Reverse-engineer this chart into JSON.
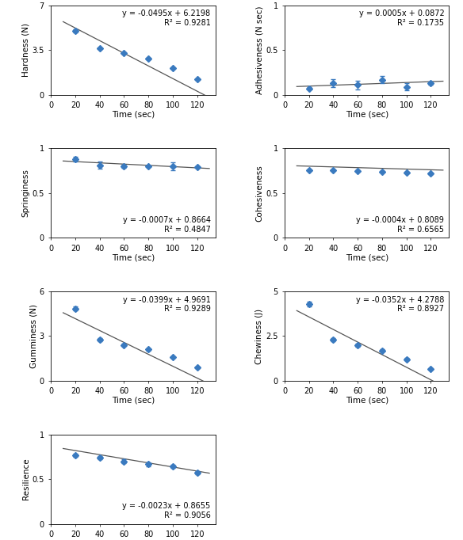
{
  "time": [
    20,
    40,
    60,
    80,
    100,
    120
  ],
  "panels": [
    {
      "ylabel": "Hardness (N)",
      "xlabel": "Time (sec)",
      "y": [
        5.0,
        3.65,
        3.25,
        2.85,
        2.1,
        1.2
      ],
      "yerr": [
        0.1,
        0.06,
        0.07,
        0.06,
        0.05,
        0.05
      ],
      "slope": -0.0495,
      "intercept": 6.2198,
      "r2": 0.9281,
      "ylim": [
        0,
        7
      ],
      "yticks": [
        0,
        3.5,
        7
      ],
      "eq_pos": "upper right",
      "row": 0,
      "col": 0
    },
    {
      "ylabel": "Adhesiveness (N sec)",
      "xlabel": "Time (sec)",
      "y": [
        0.07,
        0.13,
        0.11,
        0.17,
        0.09,
        0.13
      ],
      "yerr": [
        0.015,
        0.045,
        0.05,
        0.04,
        0.04,
        0.018
      ],
      "slope": 0.0005,
      "intercept": 0.0872,
      "r2": 0.1735,
      "ylim": [
        0,
        1
      ],
      "yticks": [
        0,
        0.5,
        1
      ],
      "eq_pos": "upper right",
      "row": 0,
      "col": 1
    },
    {
      "ylabel": "Springiness",
      "xlabel": "Time (sec)",
      "y": [
        0.88,
        0.81,
        0.8,
        0.8,
        0.8,
        0.79
      ],
      "yerr": [
        0.025,
        0.04,
        0.018,
        0.01,
        0.04,
        0.01
      ],
      "slope": -0.0007,
      "intercept": 0.8664,
      "r2": 0.4847,
      "ylim": [
        0,
        1
      ],
      "yticks": [
        0,
        0.5,
        1
      ],
      "eq_pos": "lower right",
      "row": 1,
      "col": 0
    },
    {
      "ylabel": "Cohesiveness",
      "xlabel": "Time (sec)",
      "y": [
        0.76,
        0.76,
        0.75,
        0.74,
        0.73,
        0.72
      ],
      "yerr": [
        0.005,
        0.005,
        0.005,
        0.005,
        0.005,
        0.005
      ],
      "slope": -0.0004,
      "intercept": 0.8089,
      "r2": 0.6565,
      "ylim": [
        0,
        1
      ],
      "yticks": [
        0,
        0.5,
        1
      ],
      "eq_pos": "lower right",
      "row": 1,
      "col": 1
    },
    {
      "ylabel": "Gumminess (N)",
      "xlabel": "Time (sec)",
      "y": [
        4.85,
        2.75,
        2.4,
        2.1,
        1.6,
        0.9
      ],
      "yerr": [
        0.13,
        0.09,
        0.07,
        0.07,
        0.06,
        0.05
      ],
      "slope": -0.0399,
      "intercept": 4.9691,
      "r2": 0.9289,
      "ylim": [
        0,
        6
      ],
      "yticks": [
        0,
        3,
        6
      ],
      "eq_pos": "upper right",
      "row": 2,
      "col": 0
    },
    {
      "ylabel": "Chewiness (J)",
      "xlabel": "Time (sec)",
      "y": [
        4.3,
        2.3,
        2.0,
        1.7,
        1.2,
        0.65
      ],
      "yerr": [
        0.12,
        0.1,
        0.08,
        0.07,
        0.06,
        0.04
      ],
      "slope": -0.0352,
      "intercept": 4.2788,
      "r2": 0.8927,
      "ylim": [
        0,
        5
      ],
      "yticks": [
        0,
        2.5,
        5
      ],
      "eq_pos": "upper right",
      "row": 2,
      "col": 1
    },
    {
      "ylabel": "Resilience",
      "xlabel": "Time (sec)",
      "y": [
        0.77,
        0.74,
        0.7,
        0.665,
        0.645,
        0.575
      ],
      "yerr": [
        0.018,
        0.018,
        0.018,
        0.018,
        0.018,
        0.018
      ],
      "slope": -0.0023,
      "intercept": 0.8655,
      "r2": 0.9056,
      "ylim": [
        0,
        1
      ],
      "yticks": [
        0,
        0.5,
        1
      ],
      "eq_pos": "lower right",
      "row": 3,
      "col": 0
    }
  ],
  "marker_color": "#3a7abf",
  "line_color": "#555555",
  "marker_size": 4,
  "capsize": 2.5,
  "fontsize_label": 7.5,
  "fontsize_tick": 7,
  "fontsize_eq": 7
}
